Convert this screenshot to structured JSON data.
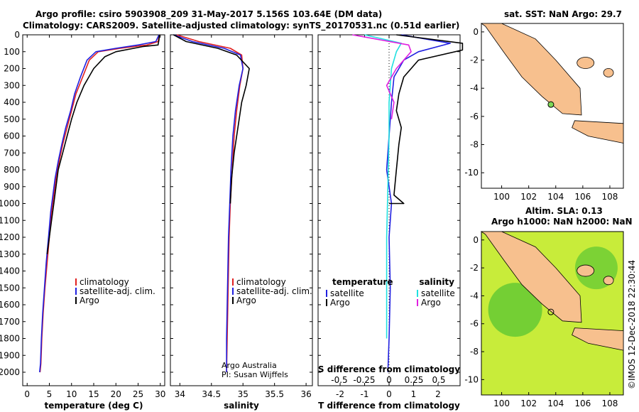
{
  "title": {
    "line1": "Argo profile: csiro 5903908_209 31-May-2017 5.156S 103.64E (DM data)",
    "line2": "Climatology: CARS2009. Satellite-adjusted climatology: synTS_20170531.nc (0.51d earlier)"
  },
  "credit": {
    "line1": "Argo Australia",
    "line2": "PI: Susan Wijffels"
  },
  "footer": "©IMOS 12-Dec-2018 22:30:44",
  "colors": {
    "climatology": "#e02020",
    "satellite": "#2020e0",
    "argo": "#000000",
    "sat_s": "#20e0e0",
    "argo_s": "#e020e0",
    "land": "#f7c08e"
  },
  "map1": {
    "title": "sat. SST: NaN Argo: 29.7",
    "xticks": [
      "100",
      "102",
      "104",
      "106",
      "108"
    ],
    "yticks": [
      "0",
      "-2",
      "-4",
      "-6",
      "-8",
      "-10"
    ]
  },
  "map2": {
    "title1": "Altim. SLA: 0.13",
    "title2": "Argo h1000: NaN h2000: NaN",
    "xticks": [
      "100",
      "102",
      "104",
      "106",
      "108"
    ],
    "yticks": [
      "0",
      "-2",
      "-4",
      "-6",
      "-8",
      "-10"
    ]
  },
  "chart_data": [
    {
      "type": "line",
      "xlabel": "temperature (deg C)",
      "ylabel": "",
      "xlim": [
        -1,
        31
      ],
      "ylim": [
        2080,
        0
      ],
      "xticks": [
        0,
        5,
        10,
        15,
        20,
        25,
        30
      ],
      "yticks": [
        0,
        100,
        200,
        300,
        400,
        500,
        600,
        700,
        800,
        900,
        1000,
        1100,
        1200,
        1300,
        1400,
        1500,
        1600,
        1700,
        1800,
        1900,
        2000
      ],
      "legend": [
        "climatology",
        "satellite-adj. clim.",
        "Argo"
      ],
      "series": [
        {
          "name": "climatology",
          "x": [
            29.8,
            29.5,
            27,
            21,
            16,
            14,
            12.5,
            11,
            10,
            9,
            8,
            7.2,
            6.5,
            6,
            5.5,
            5,
            4.5,
            4,
            3.6,
            3.3,
            3.1,
            2.9
          ],
          "y": [
            0,
            40,
            60,
            80,
            100,
            150,
            250,
            350,
            450,
            550,
            650,
            750,
            850,
            950,
            1050,
            1200,
            1350,
            1500,
            1650,
            1800,
            1950,
            2000
          ]
        },
        {
          "name": "satellite-adj. clim.",
          "x": [
            29.7,
            29,
            25,
            20,
            15.5,
            13.5,
            12,
            10.7,
            9.8,
            8.7,
            7.8,
            7,
            6.3,
            5.8,
            5.3,
            4.8,
            4.3,
            3.9,
            3.5,
            3.2,
            3,
            2.8
          ],
          "y": [
            0,
            40,
            60,
            80,
            100,
            150,
            250,
            350,
            450,
            550,
            650,
            750,
            850,
            950,
            1050,
            1200,
            1350,
            1500,
            1650,
            1800,
            1950,
            2000
          ]
        },
        {
          "name": "Argo",
          "x": [
            29.8,
            29.7,
            29.5,
            26,
            20,
            17.5,
            15,
            12.8,
            11.2,
            10,
            9,
            8,
            7,
            6.5,
            6,
            5.5,
            5,
            4.5
          ],
          "y": [
            0,
            30,
            60,
            70,
            100,
            130,
            200,
            300,
            400,
            500,
            600,
            700,
            800,
            900,
            1000,
            1100,
            1200,
            1300
          ]
        }
      ]
    },
    {
      "type": "line",
      "xlabel": "salinity",
      "ylabel": "",
      "xlim": [
        33.85,
        36.1
      ],
      "ylim": [
        2080,
        0
      ],
      "xticks": [
        "34",
        "34.5",
        "35",
        "35.5",
        "36"
      ],
      "legend": [
        "climatology",
        "satellite-adj. clim.",
        "Argo"
      ],
      "series": [
        {
          "name": "climatology",
          "x": [
            33.95,
            34.3,
            34.8,
            34.98,
            35.0,
            34.95,
            34.9,
            34.86,
            34.83,
            34.8,
            34.78,
            34.77,
            34.76,
            34.75,
            34.74
          ],
          "y": [
            0,
            40,
            80,
            120,
            200,
            300,
            450,
            600,
            800,
            1000,
            1200,
            1400,
            1600,
            1800,
            2000
          ]
        },
        {
          "name": "satellite-adj. clim.",
          "x": [
            33.9,
            34.2,
            34.7,
            34.96,
            35.0,
            34.94,
            34.88,
            34.84,
            34.81,
            34.79,
            34.77,
            34.76,
            34.75,
            34.74,
            34.74
          ],
          "y": [
            0,
            40,
            80,
            120,
            200,
            300,
            450,
            600,
            800,
            1000,
            1200,
            1400,
            1600,
            1800,
            2000
          ]
        },
        {
          "name": "Argo",
          "x": [
            33.9,
            34.1,
            34.6,
            34.9,
            35.1,
            35.05,
            34.98,
            34.92,
            34.86,
            34.82,
            34.8
          ],
          "y": [
            0,
            40,
            80,
            120,
            200,
            300,
            400,
            550,
            700,
            850,
            1000
          ]
        }
      ]
    },
    {
      "type": "line",
      "xlabel": "T difference from climatology",
      "xlabel_top": "S difference from climatology",
      "ylabel": "",
      "xlim": [
        -2.9,
        2.9
      ],
      "ylim": [
        2080,
        0
      ],
      "xticks": [
        "-2",
        "-1",
        "0",
        "1",
        "2"
      ],
      "xticks_top": [
        "-0.5",
        "-0.25",
        "0",
        "0.25",
        "0.5"
      ],
      "legend_left": {
        "title": "temperature",
        "items": [
          "satellite",
          "Argo"
        ]
      },
      "legend_right": {
        "title": "salinity",
        "items": [
          "satellite",
          "Argo"
        ]
      },
      "series": [
        {
          "name": "satellite",
          "x": [
            0.5,
            2.5,
            1.2,
            0.6,
            0.2,
            0.1,
            0.0,
            -0.1,
            0.1,
            0.0,
            0.05,
            0.0,
            -0.05
          ],
          "y": [
            0,
            50,
            100,
            150,
            250,
            400,
            600,
            800,
            1000,
            1200,
            1500,
            1800,
            2000
          ]
        },
        {
          "name": "Argo",
          "x": [
            0.3,
            3.0,
            3.0,
            1.2,
            0.6,
            0.4,
            0.3,
            0.5,
            0.4,
            0.3,
            0.2,
            0.6,
            0.0
          ],
          "y": [
            0,
            50,
            90,
            150,
            250,
            350,
            450,
            550,
            650,
            800,
            950,
            1000,
            1000
          ]
        },
        {
          "name": "satellite",
          "x": [
            -1.0,
            0.5,
            0.3,
            0.1,
            0.0,
            0.0,
            -0.05,
            -0.1,
            -0.1,
            -0.1
          ],
          "y": [
            0,
            50,
            100,
            200,
            400,
            600,
            900,
            1200,
            1500,
            1800
          ]
        },
        {
          "name": "Argo",
          "x": [
            -1.5,
            0.8,
            0.9,
            0.3,
            -0.1,
            0.2,
            0.1
          ],
          "y": [
            0,
            60,
            100,
            200,
            300,
            400,
            500
          ]
        }
      ]
    }
  ]
}
